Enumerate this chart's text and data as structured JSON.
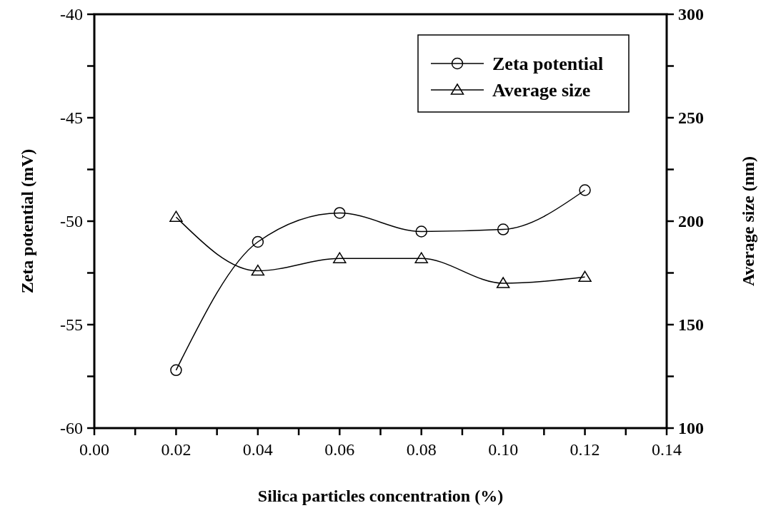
{
  "chart_data": {
    "type": "line",
    "xlabel": "Silica particles concentration (%)",
    "ylabel": "Zeta potential (mV)",
    "y2label": "Average size (nm)",
    "x": [
      0.02,
      0.04,
      0.06,
      0.08,
      0.1,
      0.12
    ],
    "series": [
      {
        "name": "Zeta potential",
        "color": "#000000",
        "marker": "circle",
        "values": [
          -57.2,
          -51.0,
          -49.6,
          -50.5,
          -50.4,
          -48.5
        ]
      },
      {
        "name": "Average size",
        "color": "#000000",
        "marker": "triangle",
        "axis": "y2",
        "values": [
          202,
          176,
          182,
          182,
          170,
          173
        ]
      }
    ],
    "xlim": [
      0,
      0.14
    ],
    "xticks": [
      {
        "value": 0,
        "label": "0.00"
      },
      {
        "value": 0.01,
        "label": null
      },
      {
        "value": 0.02,
        "label": "0.02"
      },
      {
        "value": 0.03,
        "label": null
      },
      {
        "value": 0.04,
        "label": "0.04"
      },
      {
        "value": 0.05,
        "label": null
      },
      {
        "value": 0.06,
        "label": "0.06"
      },
      {
        "value": 0.07,
        "label": null
      },
      {
        "value": 0.08,
        "label": "0.08"
      },
      {
        "value": 0.09,
        "label": null
      },
      {
        "value": 0.1,
        "label": "0.10"
      },
      {
        "value": 0.11,
        "label": null
      },
      {
        "value": 0.12,
        "label": "0.12"
      },
      {
        "value": 0.13,
        "label": null
      },
      {
        "value": 0.14,
        "label": "0.14"
      }
    ],
    "ylim": [
      -60,
      -40
    ],
    "yticks": [
      -60,
      {
        "value": -57.5,
        "label": null
      },
      -55,
      {
        "value": -52.5,
        "label": null
      },
      -50,
      {
        "value": -47.5,
        "label": null
      },
      -45,
      {
        "value": -42.5,
        "label": null
      },
      -40
    ],
    "y2lim": [
      100,
      300
    ],
    "y2ticks": [
      100,
      {
        "value": 125,
        "label": null
      },
      150,
      {
        "value": 175,
        "label": null
      },
      200,
      {
        "value": 225,
        "label": null
      },
      250,
      {
        "value": 275,
        "label": null
      },
      300
    ],
    "legend": "top right",
    "grid": false,
    "line_style": "solid"
  }
}
